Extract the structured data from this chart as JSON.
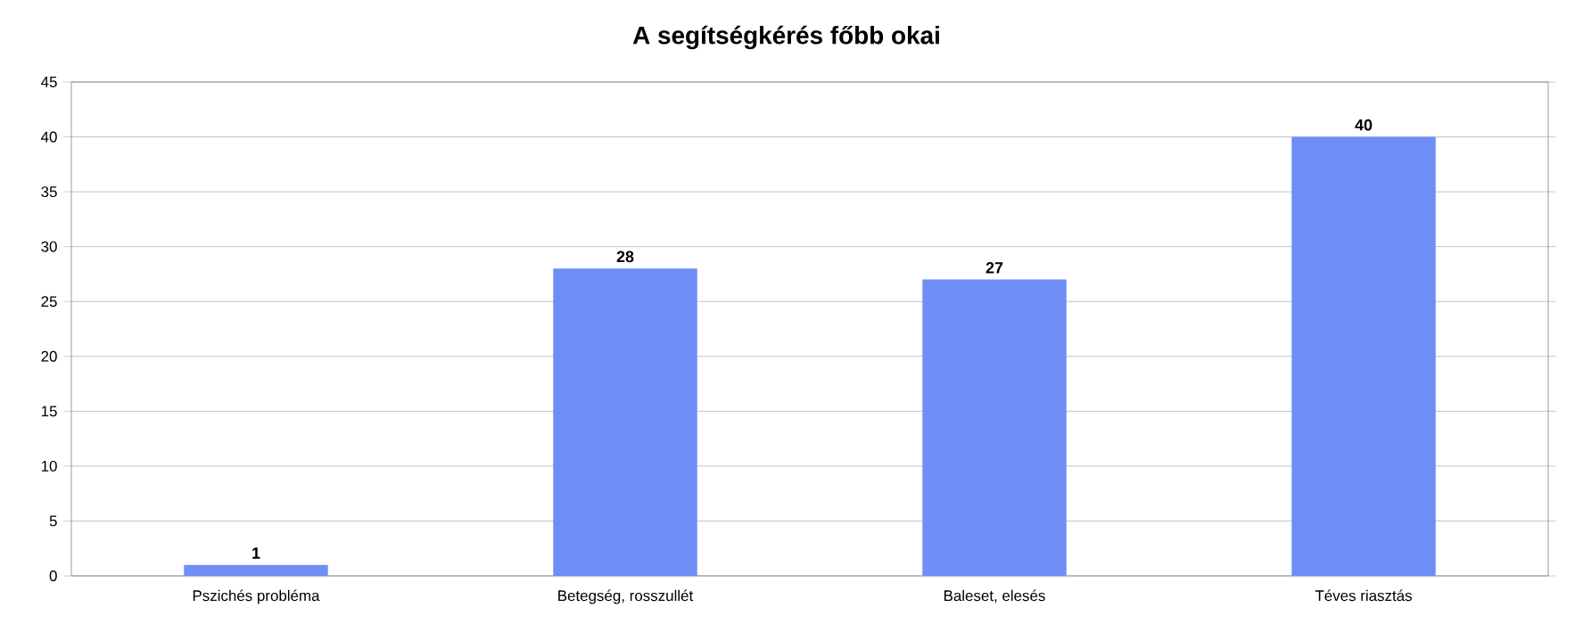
{
  "chart_data": {
    "type": "bar",
    "title": "A segítségkérés főbb okai",
    "categories": [
      "Pszichés probléma",
      "Betegség, rosszullét",
      "Baleset, elesés",
      "Téves riasztás"
    ],
    "values": [
      1,
      28,
      27,
      40
    ],
    "color": "#6e8ef6",
    "ylim": [
      0,
      45
    ],
    "yticks": [
      0,
      5,
      10,
      15,
      20,
      25,
      30,
      35,
      40,
      45
    ],
    "grid": "y",
    "data_labels": true
  }
}
